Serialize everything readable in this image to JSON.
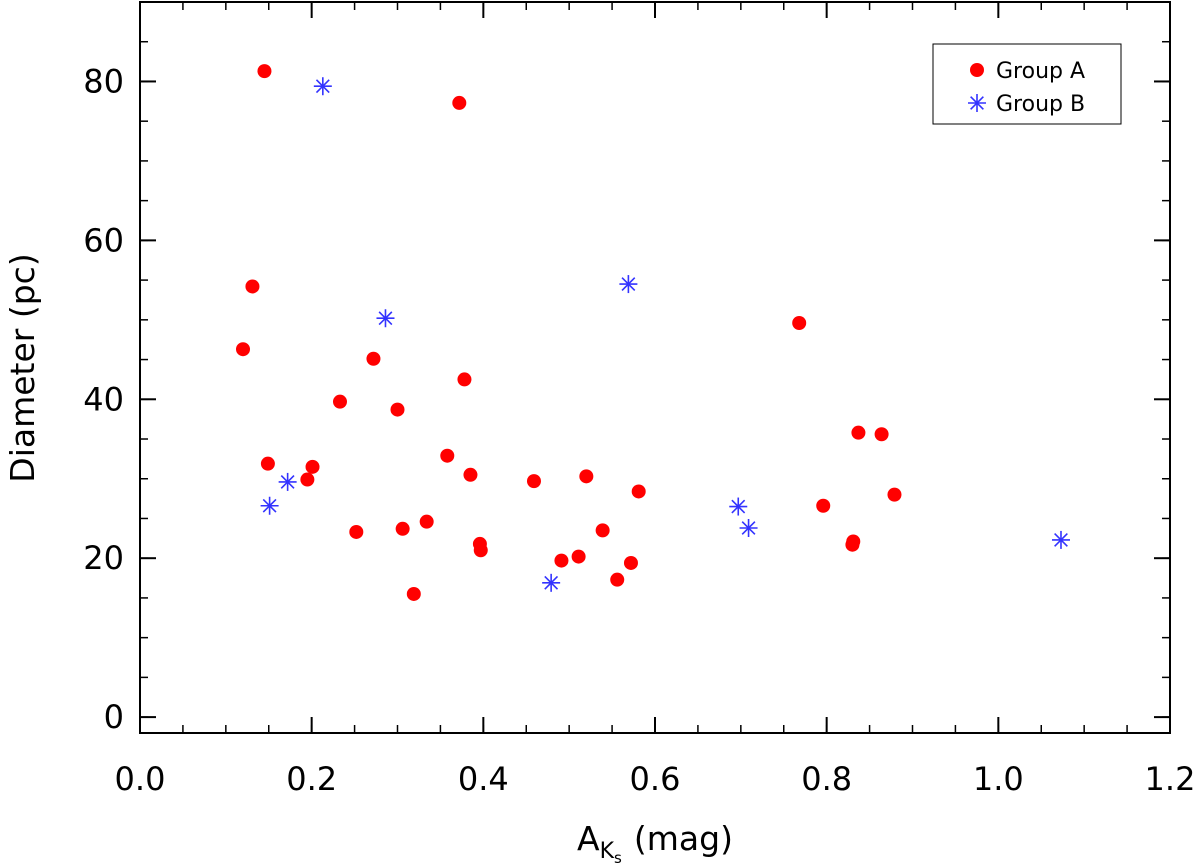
{
  "chart_data": {
    "type": "scatter",
    "title": "",
    "xlabel": {
      "main": "A",
      "sub": "K",
      "subsub": "s",
      "unit": "(mag)"
    },
    "ylabel": "Diameter  (pc)",
    "xlim": [
      0.0,
      1.2
    ],
    "ylim": [
      -2,
      90
    ],
    "xticks": [
      0.0,
      0.2,
      0.4,
      0.6,
      0.8,
      1.0,
      1.2
    ],
    "xtick_labels": [
      "0.0",
      "0.2",
      "0.4",
      "0.6",
      "0.8",
      "1.0",
      "1.2"
    ],
    "yticks": [
      0,
      20,
      40,
      60,
      80
    ],
    "ytick_labels": [
      "0",
      "20",
      "40",
      "60",
      "80"
    ],
    "x_minor_step": 0.05,
    "y_minor_step": 5,
    "legend_position": "top-right",
    "series": [
      {
        "name": "Group A",
        "marker": "circle",
        "color": "#ff0000",
        "points": [
          [
            0.145,
            81.3
          ],
          [
            0.372,
            77.3
          ],
          [
            0.131,
            54.2
          ],
          [
            0.12,
            46.3
          ],
          [
            0.272,
            45.1
          ],
          [
            0.378,
            42.5
          ],
          [
            0.233,
            39.7
          ],
          [
            0.3,
            38.7
          ],
          [
            0.768,
            49.6
          ],
          [
            0.837,
            35.8
          ],
          [
            0.864,
            35.6
          ],
          [
            0.149,
            31.9
          ],
          [
            0.201,
            31.5
          ],
          [
            0.195,
            29.9
          ],
          [
            0.358,
            32.9
          ],
          [
            0.385,
            30.5
          ],
          [
            0.459,
            29.7
          ],
          [
            0.52,
            30.3
          ],
          [
            0.581,
            28.4
          ],
          [
            0.796,
            26.6
          ],
          [
            0.879,
            28.0
          ],
          [
            0.252,
            23.3
          ],
          [
            0.306,
            23.7
          ],
          [
            0.334,
            24.6
          ],
          [
            0.396,
            21.8
          ],
          [
            0.397,
            21.0
          ],
          [
            0.491,
            19.7
          ],
          [
            0.511,
            20.2
          ],
          [
            0.539,
            23.5
          ],
          [
            0.572,
            19.4
          ],
          [
            0.556,
            17.3
          ],
          [
            0.319,
            15.5
          ],
          [
            0.83,
            21.7
          ],
          [
            0.831,
            22.1
          ]
        ]
      },
      {
        "name": "Group B",
        "marker": "asterisk",
        "color": "#3333ff",
        "points": [
          [
            0.213,
            79.4
          ],
          [
            0.569,
            54.5
          ],
          [
            0.286,
            50.2
          ],
          [
            0.172,
            29.6
          ],
          [
            0.151,
            26.6
          ],
          [
            0.479,
            16.9
          ],
          [
            0.697,
            26.5
          ],
          [
            0.709,
            23.8
          ],
          [
            1.073,
            22.3
          ]
        ]
      }
    ]
  }
}
